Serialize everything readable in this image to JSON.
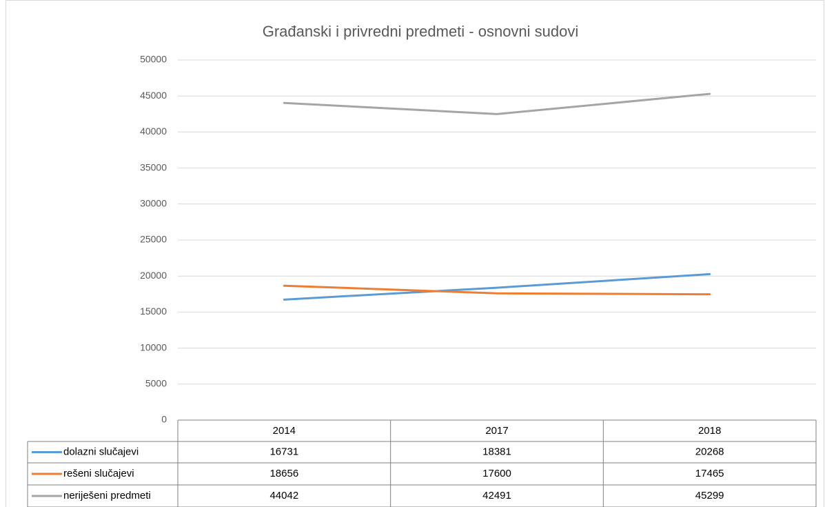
{
  "chart_data": {
    "type": "line",
    "title": "Građanski i privredni predmeti - osnovni sudovi",
    "categories": [
      "2014",
      "2017",
      "2018"
    ],
    "series": [
      {
        "name": "dolazni slučajevi",
        "color": "#5b9bd5",
        "values": [
          16731,
          18381,
          20268
        ]
      },
      {
        "name": "rešeni slučajevi",
        "color": "#ed7d31",
        "values": [
          18656,
          17600,
          17465
        ]
      },
      {
        "name": "neriješeni predmeti",
        "color": "#a5a5a5",
        "values": [
          44042,
          42491,
          45299
        ]
      }
    ],
    "ylim": [
      0,
      50000
    ],
    "yticks": [
      0,
      5000,
      10000,
      15000,
      20000,
      25000,
      30000,
      35000,
      40000,
      45000,
      50000
    ],
    "grid": true,
    "data_table": true
  }
}
